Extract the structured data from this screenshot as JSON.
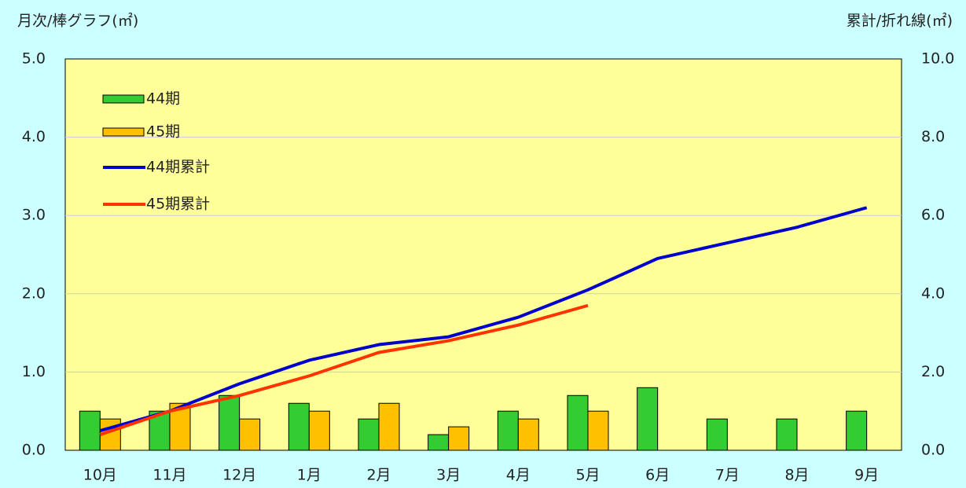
{
  "chart_data": {
    "type": "bar_line",
    "ylabel": "月次/棒グラフ(㎡)",
    "y2label": "累計/折れ線(㎡)",
    "categories": [
      "10月",
      "11月",
      "12月",
      "1月",
      "2月",
      "3月",
      "4月",
      "5月",
      "6月",
      "7月",
      "8月",
      "9月"
    ],
    "series": [
      {
        "name": "44期",
        "type": "bar",
        "color": "#33cc33",
        "values": [
          0.5,
          0.5,
          0.7,
          0.6,
          0.4,
          0.2,
          0.5,
          0.7,
          0.8,
          0.4,
          0.4,
          0.5
        ]
      },
      {
        "name": "45期",
        "type": "bar",
        "color": "#ffc000",
        "values": [
          0.4,
          0.6,
          0.4,
          0.5,
          0.6,
          0.3,
          0.4,
          0.5,
          null,
          null,
          null,
          null
        ]
      },
      {
        "name": "44期累計",
        "type": "line",
        "axis": "y2",
        "color": "#0000cc",
        "values": [
          0.5,
          1.0,
          1.7,
          2.3,
          2.7,
          2.9,
          3.4,
          4.1,
          4.9,
          5.3,
          5.7,
          6.2
        ]
      },
      {
        "name": "45期累計",
        "type": "line",
        "axis": "y2",
        "color": "#ff3300",
        "values": [
          0.4,
          1.0,
          1.4,
          1.9,
          2.5,
          2.8,
          3.2,
          3.7,
          null,
          null,
          null,
          null
        ]
      }
    ],
    "ylim": [
      0,
      5
    ],
    "yticks": [
      {
        "value": 0,
        "label": "0.0"
      },
      {
        "value": 1,
        "label": "1.0"
      },
      {
        "value": 2,
        "label": "2.0"
      },
      {
        "value": 3,
        "label": "3.0"
      },
      {
        "value": 4,
        "label": "4.0"
      },
      {
        "value": 5,
        "label": "5.0"
      }
    ],
    "y2lim": [
      0,
      10
    ],
    "y2ticks": [
      {
        "value": 0,
        "label": "0.0"
      },
      {
        "value": 2,
        "label": "2.0"
      },
      {
        "value": 4,
        "label": "4.0"
      },
      {
        "value": 6,
        "label": "6.0"
      },
      {
        "value": 8,
        "label": "8.0"
      },
      {
        "value": 10,
        "label": "10.0"
      }
    ],
    "grid": true,
    "legend": "upper left"
  }
}
